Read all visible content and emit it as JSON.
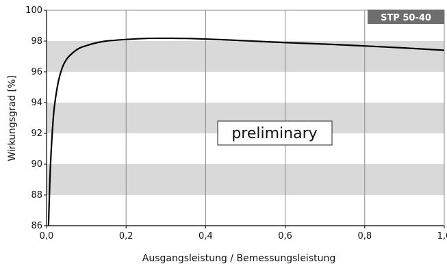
{
  "chart_data": {
    "type": "line",
    "xlabel": "Ausgangsleistung / Bemessungsleistung",
    "ylabel": "Wirkungsgrad [%]",
    "xlim": [
      0,
      1
    ],
    "ylim": [
      86,
      100
    ],
    "x_ticks": [
      0,
      0.2,
      0.4,
      0.6,
      0.8,
      1.0
    ],
    "x_tick_labels": [
      "0,0",
      "0,2",
      "0,4",
      "0,6",
      "0,8",
      "1,0"
    ],
    "y_ticks": [
      86,
      88,
      90,
      92,
      94,
      96,
      98,
      100
    ],
    "y_tick_labels": [
      "86",
      "88",
      "90",
      "92",
      "94",
      "96",
      "98",
      "100"
    ],
    "grid": "vertical",
    "band_color": "#d9d9d9",
    "badge": {
      "text": "STP 50-40",
      "color": "#6e6e6e"
    },
    "annotation": "preliminary",
    "series": [
      {
        "color": "#000000",
        "x": [
          0.005,
          0.006,
          0.008,
          0.01,
          0.015,
          0.02,
          0.03,
          0.04,
          0.05,
          0.06,
          0.08,
          0.1,
          0.12,
          0.15,
          0.2,
          0.25,
          0.3,
          0.35,
          0.4,
          0.5,
          0.6,
          0.7,
          0.8,
          0.9,
          1.0
        ],
        "y": [
          86.0,
          87.0,
          88.6,
          90.0,
          92.3,
          93.8,
          95.4,
          96.3,
          96.8,
          97.1,
          97.5,
          97.7,
          97.85,
          98.0,
          98.1,
          98.17,
          98.18,
          98.17,
          98.13,
          98.02,
          97.9,
          97.8,
          97.68,
          97.55,
          97.4
        ]
      }
    ]
  }
}
